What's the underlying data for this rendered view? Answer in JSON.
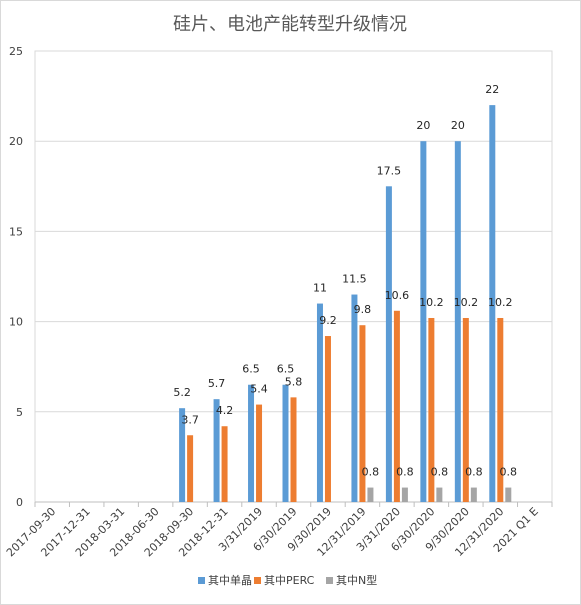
{
  "chart_data": {
    "type": "bar",
    "title": "硅片、电池产能转型升级情况",
    "xlabel": "",
    "ylabel": "",
    "ylim": [
      0,
      25
    ],
    "yticks": [
      "0",
      "5",
      "10",
      "15",
      "20",
      "25"
    ],
    "grid": true,
    "legend_position": "bottom",
    "categories": [
      "2017-09-30",
      "2017-12-31",
      "2018-03-31",
      "2018-06-30",
      "2018-09-30",
      "2018-12-31",
      "3/31/2019",
      "6/30/2019",
      "9/30/2019",
      "12/31/2019",
      "3/31/2020",
      "6/30/2020",
      "9/30/2020",
      "12/31/2020",
      "2021 Q1 E"
    ],
    "series": [
      {
        "name": "其中单晶",
        "color": "#5b9bd5",
        "values": [
          null,
          null,
          null,
          null,
          5.2,
          5.7,
          6.5,
          6.5,
          11,
          11.5,
          17.5,
          20,
          20,
          22,
          null
        ],
        "labels": [
          "",
          "",
          "",
          "",
          "5.2",
          "5.7",
          "6.5",
          "6.5",
          "11",
          "11.5",
          "17.5",
          "20",
          "20",
          "22",
          ""
        ]
      },
      {
        "name": "其中PERC",
        "color": "#ed7d31",
        "values": [
          null,
          null,
          null,
          null,
          3.7,
          4.2,
          5.4,
          5.8,
          9.2,
          9.8,
          10.6,
          10.2,
          10.2,
          10.2,
          null
        ],
        "labels": [
          "",
          "",
          "",
          "",
          "3.7",
          "4.2",
          "5.4",
          "5.8",
          "9.2",
          "9.8",
          "10.6",
          "10.2",
          "10.2",
          "10.2",
          ""
        ]
      },
      {
        "name": "其中N型",
        "color": "#a5a5a5",
        "values": [
          null,
          null,
          null,
          null,
          null,
          null,
          null,
          null,
          null,
          0.8,
          0.8,
          0.8,
          0.8,
          0.8,
          null
        ],
        "labels": [
          "",
          "",
          "",
          "",
          "",
          "",
          "",
          "",
          "",
          "0.8",
          "0.8",
          "0.8",
          "0.8",
          "0.8",
          ""
        ]
      }
    ]
  }
}
